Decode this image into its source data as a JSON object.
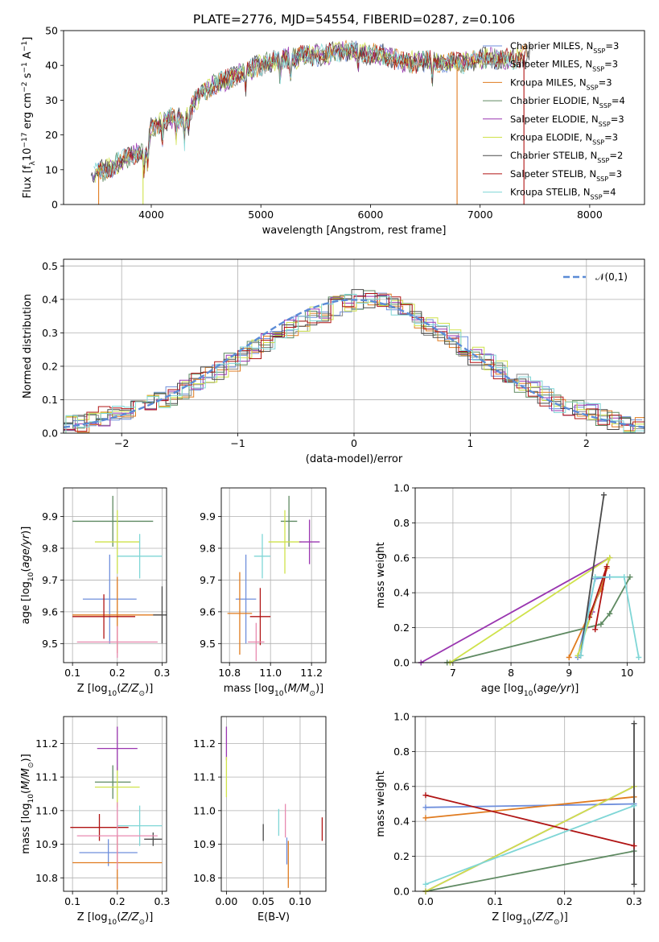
{
  "figure_title": "PLATE=2776, MJD=54554, FIBERID=0287, z=0.106",
  "colors": {
    "Chabrier MILES": "#6f8fdc",
    "Salpeter MILES": "#888888",
    "Kroupa MILES": "#e07b1f",
    "Chabrier ELODIE": "#5f8a62",
    "Salpeter ELODIE": "#9a36b0",
    "Kroupa ELODIE": "#cfe24a",
    "Chabrier STELIB": "#4a4a4a",
    "Salpeter STELIB": "#b01414",
    "Kroupa STELIB": "#7fd6d6",
    "pink": "#e88ab0",
    "normal_curve": "#5b8bd6"
  },
  "chart_data": [
    {
      "id": "spectrum",
      "type": "line",
      "xlabel": "wavelength [Angstrom, rest frame]",
      "ylabel": "Flux [f_λ10^-17 erg cm^-2 s^-1 A^-1]",
      "xlim": [
        3200,
        8500
      ],
      "ylim": [
        0,
        50
      ],
      "xticks": [
        4000,
        5000,
        6000,
        7000,
        8000
      ],
      "yticks": [
        0,
        10,
        20,
        30,
        40,
        50
      ],
      "grid": false,
      "legend_position": "upper-right",
      "legend": [
        {
          "label": "Chabrier MILES, N_SSP=3",
          "color": "#6f8fdc"
        },
        {
          "label": "Salpeter MILES, N_SSP=3",
          "color": "#888888"
        },
        {
          "label": "Kroupa MILES, N_SSP=3",
          "color": "#e07b1f"
        },
        {
          "label": "Chabrier ELODIE, N_SSP=4",
          "color": "#5f8a62"
        },
        {
          "label": "Salpeter ELODIE, N_SSP=3",
          "color": "#9a36b0"
        },
        {
          "label": "Kroupa ELODIE, N_SSP=3",
          "color": "#cfe24a"
        },
        {
          "label": "Chabrier STELIB, N_SSP=2",
          "color": "#4a4a4a"
        },
        {
          "label": "Salpeter STELIB, N_SSP=3",
          "color": "#b01414"
        },
        {
          "label": "Kroupa STELIB, N_SSP=4",
          "color": "#7fd6d6"
        }
      ],
      "continuum": {
        "x": [
          3450,
          3600,
          3700,
          3800,
          3900,
          3950,
          4000,
          4100,
          4200,
          4300,
          4400,
          4500,
          4600,
          4700,
          4800,
          4900,
          5000,
          5100,
          5200,
          5300,
          5400,
          5500,
          5600,
          5700,
          5800,
          5900,
          6000,
          6100,
          6200,
          6300,
          6400,
          6500,
          6600,
          6700,
          6800,
          6900,
          7000,
          7100,
          7200,
          7300,
          7400,
          7500
        ],
        "y": [
          9,
          10,
          12,
          14,
          15,
          14,
          22,
          24,
          25,
          24,
          30,
          33,
          35,
          36,
          38,
          39,
          40,
          41,
          42,
          42,
          43,
          43,
          43,
          44,
          44,
          44,
          43,
          43,
          42,
          41,
          41,
          41,
          41,
          41,
          41,
          41,
          42,
          42,
          42,
          42,
          43,
          44
        ]
      },
      "absorption_lines": [
        3934,
        3969,
        4102,
        4227,
        4304,
        4340,
        4861,
        5175,
        5270,
        5890,
        6563
      ]
    },
    {
      "id": "residuals",
      "type": "histogram",
      "xlabel": "(data-model)/error",
      "ylabel": "Normed distribution",
      "xlim": [
        -2.5,
        2.5
      ],
      "ylim": [
        0,
        0.52
      ],
      "xticks": [
        -2,
        -1,
        0,
        1,
        2
      ],
      "xtick_labels": [
        "−2",
        "−1",
        "0",
        "1",
        "2"
      ],
      "yticks": [
        0.0,
        0.1,
        0.2,
        0.3,
        0.4,
        0.5
      ],
      "grid": true,
      "bin_edges_start": -2.5,
      "bin_width": 0.1,
      "envelope": [
        0.03,
        0.03,
        0.04,
        0.05,
        0.06,
        0.07,
        0.08,
        0.09,
        0.1,
        0.11,
        0.13,
        0.15,
        0.17,
        0.19,
        0.21,
        0.23,
        0.25,
        0.27,
        0.29,
        0.31,
        0.33,
        0.35,
        0.36,
        0.38,
        0.39,
        0.4,
        0.4,
        0.39,
        0.38,
        0.36,
        0.34,
        0.32,
        0.3,
        0.28,
        0.26,
        0.23,
        0.21,
        0.19,
        0.17,
        0.15,
        0.13,
        0.11,
        0.09,
        0.08,
        0.07,
        0.06,
        0.05,
        0.04,
        0.03,
        0.02
      ],
      "legend": [
        {
          "label": "𝒩(0,1)",
          "style": "dashed",
          "color": "#5b8bd6"
        }
      ],
      "legend_position": "upper-right"
    },
    {
      "id": "age_vs_Z",
      "type": "errorbar",
      "xlabel": "Z [log10(Z/Z⊙)]",
      "ylabel": "age  [log10(age/yr)]",
      "xlim": [
        0.08,
        0.31
      ],
      "ylim": [
        9.44,
        9.99
      ],
      "xticks": [
        0.1,
        0.2,
        0.3
      ],
      "xtick_labels": [
        "0.1",
        "0.2",
        "0.3"
      ],
      "yticks": [
        9.5,
        9.6,
        9.7,
        9.8,
        9.9
      ],
      "grid": true,
      "points": [
        {
          "x": 0.183,
          "y": 9.64,
          "xerr": 0.06,
          "yerr": 0.14,
          "color": "#6f8fdc"
        },
        {
          "x": 0.2,
          "y": 9.59,
          "xerr": 0.1,
          "yerr": 0.12,
          "color": "#e07b1f"
        },
        {
          "x": 0.19,
          "y": 9.885,
          "xerr": 0.09,
          "yerr": 0.08,
          "color": "#5f8a62"
        },
        {
          "x": 0.2,
          "y": 9.82,
          "xerr": 0.05,
          "yerr": 0.1,
          "color": "#cfe24a"
        },
        {
          "x": 0.3,
          "y": 9.59,
          "xerr": 0.02,
          "yerr": 0.09,
          "color": "#4a4a4a"
        },
        {
          "x": 0.17,
          "y": 9.585,
          "xerr": 0.07,
          "yerr": 0.07,
          "color": "#b01414"
        },
        {
          "x": 0.25,
          "y": 9.775,
          "xerr": 0.05,
          "yerr": 0.07,
          "color": "#7fd6d6"
        },
        {
          "x": 0.2,
          "y": 9.505,
          "xerr": 0.09,
          "yerr": 0.05,
          "color": "#e88ab0"
        }
      ]
    },
    {
      "id": "age_vs_mass",
      "type": "errorbar",
      "xlabel": "mass [log10(M/M⊙)]",
      "xlim": [
        10.76,
        11.27
      ],
      "ylim": [
        9.44,
        9.99
      ],
      "xticks": [
        10.8,
        11.0,
        11.2
      ],
      "xtick_labels": [
        "10.8",
        "11.0",
        "11.2"
      ],
      "yticks": [
        9.5,
        9.6,
        9.7,
        9.8,
        9.9
      ],
      "grid": true,
      "points": [
        {
          "x": 10.88,
          "y": 9.64,
          "xerr": 0.05,
          "yerr": 0.14,
          "color": "#6f8fdc"
        },
        {
          "x": 10.85,
          "y": 9.595,
          "xerr": 0.06,
          "yerr": 0.13,
          "color": "#e07b1f"
        },
        {
          "x": 11.09,
          "y": 9.885,
          "xerr": 0.04,
          "yerr": 0.08,
          "color": "#5f8a62"
        },
        {
          "x": 11.07,
          "y": 9.82,
          "xerr": 0.08,
          "yerr": 0.1,
          "color": "#cfe24a"
        },
        {
          "x": 11.19,
          "y": 9.82,
          "xerr": 0.05,
          "yerr": 0.07,
          "color": "#9a36b0"
        },
        {
          "x": 10.95,
          "y": 9.585,
          "xerr": 0.05,
          "yerr": 0.09,
          "color": "#b01414"
        },
        {
          "x": 10.96,
          "y": 9.775,
          "xerr": 0.04,
          "yerr": 0.07,
          "color": "#7fd6d6"
        },
        {
          "x": 10.93,
          "y": 9.505,
          "xerr": 0.04,
          "yerr": 0.06,
          "color": "#e88ab0"
        }
      ]
    },
    {
      "id": "weight_vs_age",
      "type": "line",
      "xlabel": "age  [log10(age/yr)]",
      "ylabel": "mass weight",
      "xlim": [
        6.35,
        10.3
      ],
      "ylim": [
        0,
        1
      ],
      "xticks": [
        7,
        8,
        9,
        10
      ],
      "xtick_labels": [
        "7",
        "8",
        "9",
        "10"
      ],
      "yticks": [
        0.0,
        0.2,
        0.4,
        0.6,
        0.8,
        1.0
      ],
      "grid": true,
      "series": [
        {
          "color": "#6f8fdc",
          "x": [
            9.15,
            9.45,
            9.7
          ],
          "y": [
            0.03,
            0.48,
            0.49
          ]
        },
        {
          "color": "#e07b1f",
          "x": [
            9.0,
            9.55,
            9.65
          ],
          "y": [
            0.03,
            0.42,
            0.54
          ]
        },
        {
          "color": "#5f8a62",
          "x": [
            6.9,
            9.55,
            9.7,
            10.05
          ],
          "y": [
            0.0,
            0.22,
            0.28,
            0.49
          ]
        },
        {
          "color": "#9a36b0",
          "x": [
            6.45,
            9.7,
            9.4,
            9.3
          ],
          "y": [
            0.0,
            0.6,
            0.29,
            0.2
          ]
        },
        {
          "color": "#cfe24a",
          "x": [
            6.95,
            9.7,
            9.15
          ],
          "y": [
            0.0,
            0.6,
            0.04
          ]
        },
        {
          "color": "#4a4a4a",
          "x": [
            9.2,
            9.6
          ],
          "y": [
            0.04,
            0.96
          ]
        },
        {
          "color": "#b01414",
          "x": [
            9.45,
            9.65,
            9.35
          ],
          "y": [
            0.19,
            0.55,
            0.26
          ]
        },
        {
          "color": "#7fd6d6",
          "x": [
            9.2,
            9.45,
            9.95,
            10.2
          ],
          "y": [
            0.04,
            0.49,
            0.49,
            0.03
          ]
        }
      ]
    },
    {
      "id": "mass_vs_Z",
      "type": "errorbar",
      "xlabel": "Z [log10(Z/Z⊙)]",
      "ylabel": "mass [log10(M/M⊙)]",
      "xlim": [
        0.08,
        0.31
      ],
      "ylim": [
        10.76,
        11.28
      ],
      "xticks": [
        0.1,
        0.2,
        0.3
      ],
      "xtick_labels": [
        "0.1",
        "0.2",
        "0.3"
      ],
      "yticks": [
        10.8,
        10.9,
        11.0,
        11.1,
        11.2
      ],
      "grid": true,
      "points": [
        {
          "x": 0.18,
          "y": 10.875,
          "xerr": 0.065,
          "yerr": 0.04,
          "color": "#6f8fdc"
        },
        {
          "x": 0.2,
          "y": 10.845,
          "xerr": 0.1,
          "yerr": 0.08,
          "color": "#e07b1f"
        },
        {
          "x": 0.19,
          "y": 11.085,
          "xerr": 0.04,
          "yerr": 0.05,
          "color": "#5f8a62"
        },
        {
          "x": 0.2,
          "y": 11.07,
          "xerr": 0.05,
          "yerr": 0.06,
          "color": "#cfe24a"
        },
        {
          "x": 0.2,
          "y": 11.185,
          "xerr": 0.045,
          "yerr": 0.065,
          "color": "#9a36b0"
        },
        {
          "x": 0.28,
          "y": 10.915,
          "xerr": 0.02,
          "yerr": 0.02,
          "color": "#4a4a4a"
        },
        {
          "x": 0.16,
          "y": 10.95,
          "xerr": 0.065,
          "yerr": 0.04,
          "color": "#b01414"
        },
        {
          "x": 0.25,
          "y": 10.955,
          "xerr": 0.05,
          "yerr": 0.06,
          "color": "#7fd6d6"
        },
        {
          "x": 0.2,
          "y": 10.925,
          "xerr": 0.09,
          "yerr": 0.1,
          "color": "#e88ab0"
        }
      ]
    },
    {
      "id": "mass_vs_EBV",
      "type": "errorbar",
      "xlabel": "E(B-V)",
      "xlim": [
        -0.007,
        0.135
      ],
      "ylim": [
        10.76,
        11.28
      ],
      "xticks": [
        0.0,
        0.05,
        0.1
      ],
      "xtick_labels": [
        "0.00",
        "0.05",
        "0.10"
      ],
      "yticks": [
        10.8,
        10.9,
        11.0,
        11.1,
        11.2
      ],
      "grid": true,
      "points": [
        {
          "x": 0.0,
          "y": 11.2,
          "xerr": 0,
          "yerr": 0.05,
          "color": "#9a36b0"
        },
        {
          "x": 0.0,
          "y": 11.1,
          "xerr": 0,
          "yerr": 0.06,
          "color": "#cfe24a"
        },
        {
          "x": 0.05,
          "y": 10.935,
          "xerr": 0,
          "yerr": 0.025,
          "color": "#4a4a4a"
        },
        {
          "x": 0.071,
          "y": 10.965,
          "xerr": 0,
          "yerr": 0.04,
          "color": "#7fd6d6"
        },
        {
          "x": 0.08,
          "y": 10.97,
          "xerr": 0,
          "yerr": 0.05,
          "color": "#e88ab0"
        },
        {
          "x": 0.082,
          "y": 10.88,
          "xerr": 0,
          "yerr": 0.04,
          "color": "#6f8fdc"
        },
        {
          "x": 0.084,
          "y": 10.84,
          "xerr": 0,
          "yerr": 0.07,
          "color": "#e07b1f"
        },
        {
          "x": 0.13,
          "y": 10.945,
          "xerr": 0,
          "yerr": 0.035,
          "color": "#b01414"
        }
      ]
    },
    {
      "id": "weight_vs_Z",
      "type": "line",
      "xlabel": "Z [log10(Z/Z⊙)]",
      "ylabel": "mass weight",
      "xlim": [
        -0.015,
        0.315
      ],
      "ylim": [
        0,
        1
      ],
      "xticks": [
        0.0,
        0.1,
        0.2,
        0.3
      ],
      "xtick_labels": [
        "0.0",
        "0.1",
        "0.2",
        "0.3"
      ],
      "yticks": [
        0.0,
        0.2,
        0.4,
        0.6,
        0.8,
        1.0
      ],
      "grid": true,
      "series": [
        {
          "color": "#6f8fdc",
          "x": [
            0.0,
            0.3
          ],
          "y": [
            0.48,
            0.5
          ]
        },
        {
          "color": "#e07b1f",
          "x": [
            0.0,
            0.3
          ],
          "y": [
            0.42,
            0.54
          ]
        },
        {
          "color": "#5f8a62",
          "x": [
            0.0,
            0.3
          ],
          "y": [
            0.0,
            0.23
          ]
        },
        {
          "color": "#9a36b0",
          "x": [
            0.0,
            0.3
          ],
          "y": [
            0.0,
            0.6
          ]
        },
        {
          "color": "#cfe24a",
          "x": [
            0.0,
            0.3
          ],
          "y": [
            0.0,
            0.6
          ]
        },
        {
          "color": "#4a4a4a",
          "x": [
            0.3,
            0.3
          ],
          "y": [
            0.04,
            0.96
          ]
        },
        {
          "color": "#b01414",
          "x": [
            0.0,
            0.3
          ],
          "y": [
            0.55,
            0.26
          ]
        },
        {
          "color": "#7fd6d6",
          "x": [
            0.0,
            0.3
          ],
          "y": [
            0.04,
            0.49
          ]
        }
      ]
    }
  ]
}
